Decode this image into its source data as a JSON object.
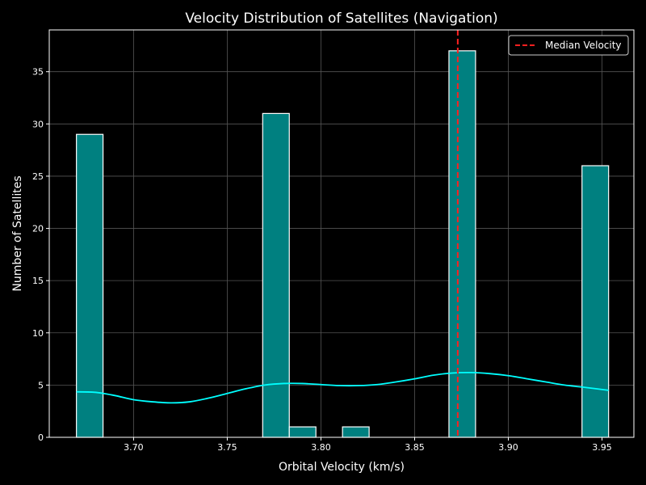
{
  "chart_data": {
    "type": "bar",
    "title": "Velocity Distribution of Satellites (Navigation)",
    "xlabel": "Orbital Velocity (km/s)",
    "ylabel": "Number of Satellites",
    "xlim": [
      3.655,
      3.967
    ],
    "ylim": [
      0,
      39
    ],
    "x_ticks": [
      3.7,
      3.75,
      3.8,
      3.85,
      3.9,
      3.95
    ],
    "x_tick_labels": [
      "3.70",
      "3.75",
      "3.80",
      "3.85",
      "3.90",
      "3.95"
    ],
    "y_ticks": [
      0,
      5,
      10,
      15,
      20,
      25,
      30,
      35
    ],
    "y_tick_labels": [
      "0",
      "5",
      "10",
      "15",
      "20",
      "25",
      "30",
      "35"
    ],
    "grid": true,
    "bin_edges": [
      3.6695,
      3.6837,
      3.6979,
      3.7121,
      3.7263,
      3.7405,
      3.7547,
      3.7689,
      3.7831,
      3.7973,
      3.8115,
      3.8257,
      3.8399,
      3.8541,
      3.8683,
      3.8825,
      3.8967,
      3.9109,
      3.9251,
      3.9393,
      3.9535
    ],
    "counts": [
      29,
      0,
      0,
      0,
      0,
      0,
      0,
      31,
      1,
      0,
      1,
      0,
      0,
      0,
      37,
      0,
      0,
      0,
      0,
      26
    ],
    "kde": {
      "x": [
        3.6695,
        3.68,
        3.69,
        3.7,
        3.71,
        3.72,
        3.73,
        3.74,
        3.75,
        3.76,
        3.77,
        3.78,
        3.79,
        3.8,
        3.81,
        3.82,
        3.83,
        3.84,
        3.85,
        3.86,
        3.87,
        3.88,
        3.89,
        3.9,
        3.91,
        3.92,
        3.93,
        3.94,
        3.9535
      ],
      "y": [
        4.35,
        4.3,
        4.0,
        3.6,
        3.4,
        3.3,
        3.4,
        3.75,
        4.2,
        4.65,
        5.0,
        5.15,
        5.15,
        5.05,
        4.95,
        4.95,
        5.05,
        5.3,
        5.6,
        5.95,
        6.15,
        6.2,
        6.1,
        5.9,
        5.6,
        5.3,
        5.0,
        4.8,
        4.5
      ]
    },
    "median_line": {
      "x": 3.873,
      "label": "Median Velocity"
    },
    "legend": {
      "position": "top-right",
      "entries": [
        "Median Velocity"
      ]
    },
    "colors": {
      "background": "#000000",
      "bar_fill": "#008080",
      "bar_edge": "#ffffff",
      "kde_line": "#00ffff",
      "median_line": "#ff2020",
      "grid": "#555555",
      "text": "#ffffff"
    }
  }
}
